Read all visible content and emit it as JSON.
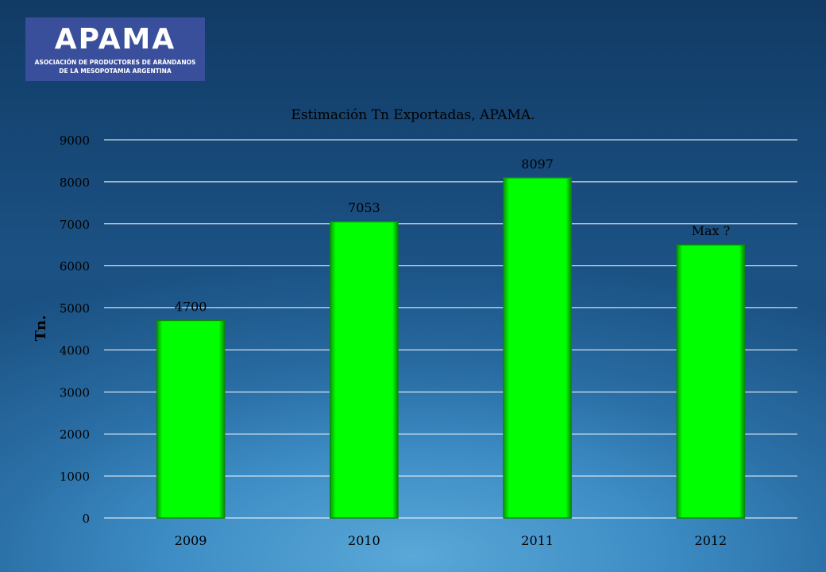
{
  "logo": {
    "name": "APAMA",
    "subtitle_line1": "ASOCIACIÓN DE PRODUCTORES DE ARÁNDANOS",
    "subtitle_line2": "DE LA MESOPOTAMIA ARGENTINA"
  },
  "chart_data": {
    "type": "bar",
    "title": "Estimación Tn Exportadas, APAMA.",
    "xlabel": "",
    "ylabel": "Tn.",
    "categories": [
      "2009",
      "2010",
      "2011",
      "2012"
    ],
    "values": [
      4700,
      7053,
      8097,
      6500
    ],
    "data_labels": [
      "4700",
      "7053",
      "8097",
      "Max ?"
    ],
    "ylim": [
      0,
      9000
    ],
    "yticks": [
      0,
      1000,
      2000,
      3000,
      4000,
      5000,
      6000,
      7000,
      8000,
      9000
    ],
    "grid": true,
    "legend": "none",
    "colors": {
      "bar": "#00ff00",
      "bar_edge": "#0a8a0a",
      "grid": "#ffffff",
      "text": "#000000"
    }
  }
}
